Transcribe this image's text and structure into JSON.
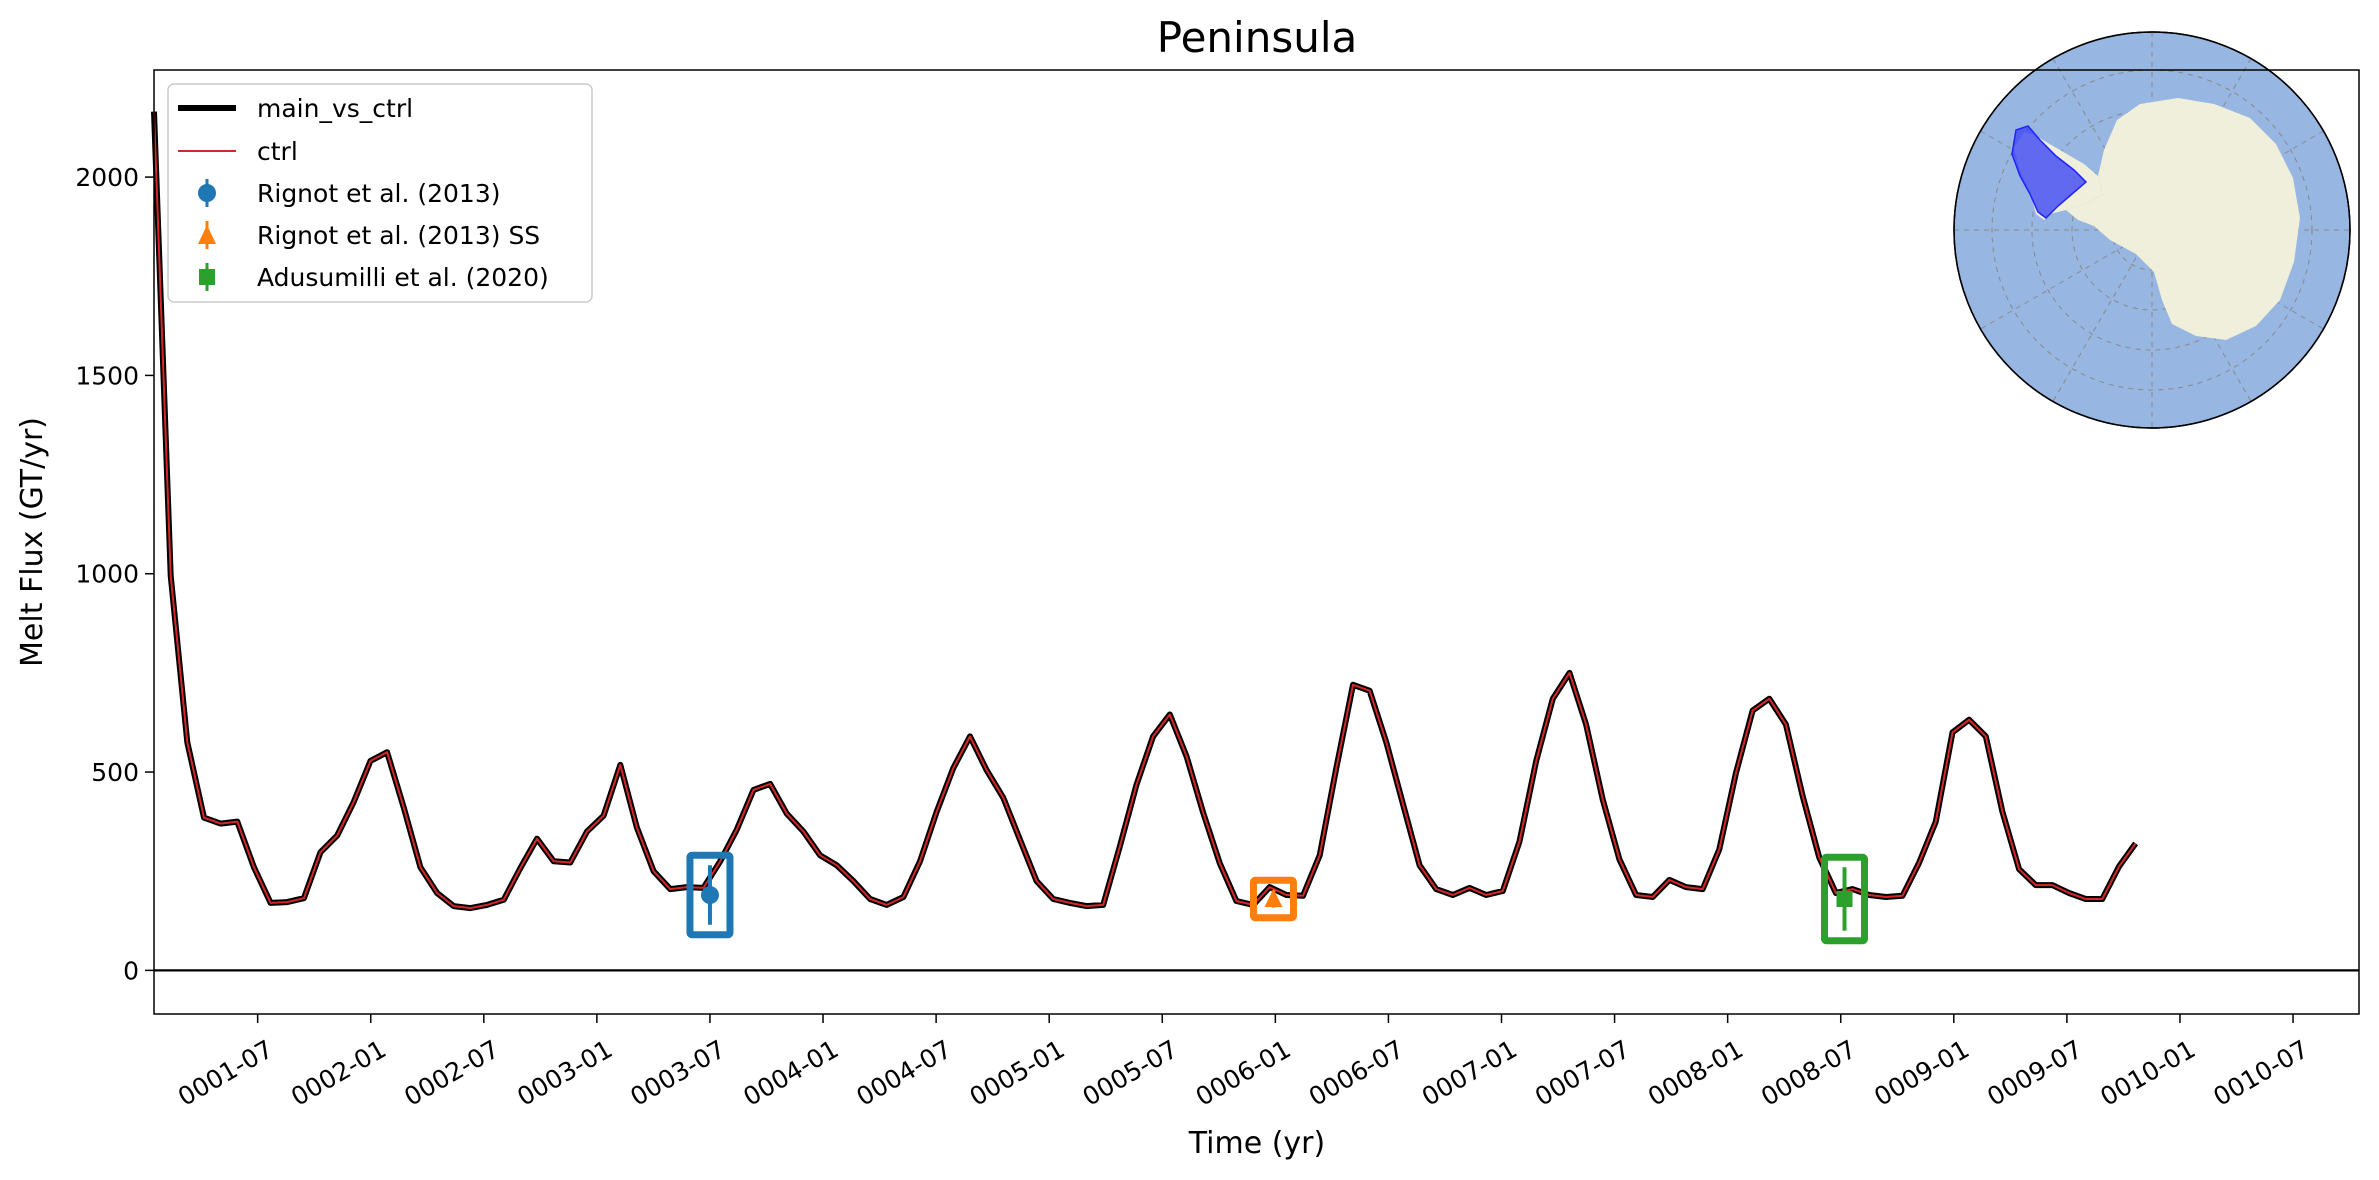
{
  "chart_data": {
    "type": "line",
    "title": "Peninsula",
    "xlabel": "Time (yr)",
    "ylabel": "Melt Flux (GT/yr)",
    "x_unit": "months since 0001-01",
    "xlim": [
      2.5,
      119.5
    ],
    "ylim": [
      -110,
      2270
    ],
    "yticks": [
      0,
      500,
      1000,
      1500,
      2000
    ],
    "xticks": [
      {
        "label": "0001-07",
        "value": 8
      },
      {
        "label": "0002-01",
        "value": 14
      },
      {
        "label": "0002-07",
        "value": 20
      },
      {
        "label": "0003-01",
        "value": 26
      },
      {
        "label": "0003-07",
        "value": 32
      },
      {
        "label": "0004-01",
        "value": 38
      },
      {
        "label": "0004-07",
        "value": 44
      },
      {
        "label": "0005-01",
        "value": 50
      },
      {
        "label": "0005-07",
        "value": 56
      },
      {
        "label": "0006-01",
        "value": 62
      },
      {
        "label": "0006-07",
        "value": 68
      },
      {
        "label": "0007-01",
        "value": 74
      },
      {
        "label": "0007-07",
        "value": 80
      },
      {
        "label": "0008-01",
        "value": 86
      },
      {
        "label": "0008-07",
        "value": 92
      },
      {
        "label": "0009-01",
        "value": 98
      },
      {
        "label": "0009-07",
        "value": 104
      },
      {
        "label": "0010-01",
        "value": 110
      },
      {
        "label": "0010-07",
        "value": 116
      }
    ],
    "grid": false,
    "legend_position": "top-left",
    "zero_line": true,
    "series": [
      {
        "name": "main_vs_ctrl",
        "color": "#000000",
        "style": "thick-line",
        "x_start": 2.5,
        "x_step": 0.8836,
        "values": [
          2165,
          995,
          575,
          385,
          370,
          375,
          260,
          170,
          172,
          182,
          298,
          340,
          425,
          528,
          550,
          410,
          260,
          195,
          162,
          157,
          165,
          178,
          258,
          332,
          275,
          272,
          350,
          390,
          518,
          360,
          250,
          205,
          210,
          208,
          275,
          355,
          455,
          470,
          395,
          350,
          290,
          265,
          225,
          180,
          165,
          185,
          275,
          400,
          510,
          590,
          505,
          435,
          330,
          225,
          180,
          170,
          162,
          165,
          312,
          468,
          590,
          645,
          540,
          398,
          270,
          175,
          165,
          210,
          190,
          188,
          290,
          510,
          720,
          705,
          575,
          420,
          265,
          205,
          190,
          208,
          190,
          200,
          325,
          528,
          685,
          750,
          620,
          430,
          280,
          190,
          185,
          228,
          210,
          205,
          305,
          498,
          655,
          685,
          620,
          440,
          285,
          195,
          205,
          190,
          185,
          188,
          272,
          375,
          600,
          632,
          590,
          400,
          255,
          215,
          215,
          195,
          180,
          180,
          262,
          320
        ]
      },
      {
        "name": "ctrl",
        "color": "#d62728",
        "style": "thin-line",
        "same_as": "main_vs_ctrl"
      },
      {
        "name": "Rignot et al. (2013)",
        "color": "#1f77b4",
        "marker": "circle",
        "x": 32,
        "y": 190,
        "yerr": 75
      },
      {
        "name": "Rignot et al. (2013) SS",
        "color": "#ff7f0e",
        "marker": "triangle",
        "x": 61.9,
        "y": 180,
        "yerr": 22
      },
      {
        "name": "Adusumilli et al. (2020)",
        "color": "#2ca02c",
        "marker": "square",
        "x": 92.2,
        "y": 180,
        "yerr": 80
      }
    ],
    "inset": {
      "type": "south-polar-map",
      "ocean_color": "#97b6e1",
      "land_color": "#efefdb",
      "highlight_region_color": "#3d47f5"
    }
  }
}
